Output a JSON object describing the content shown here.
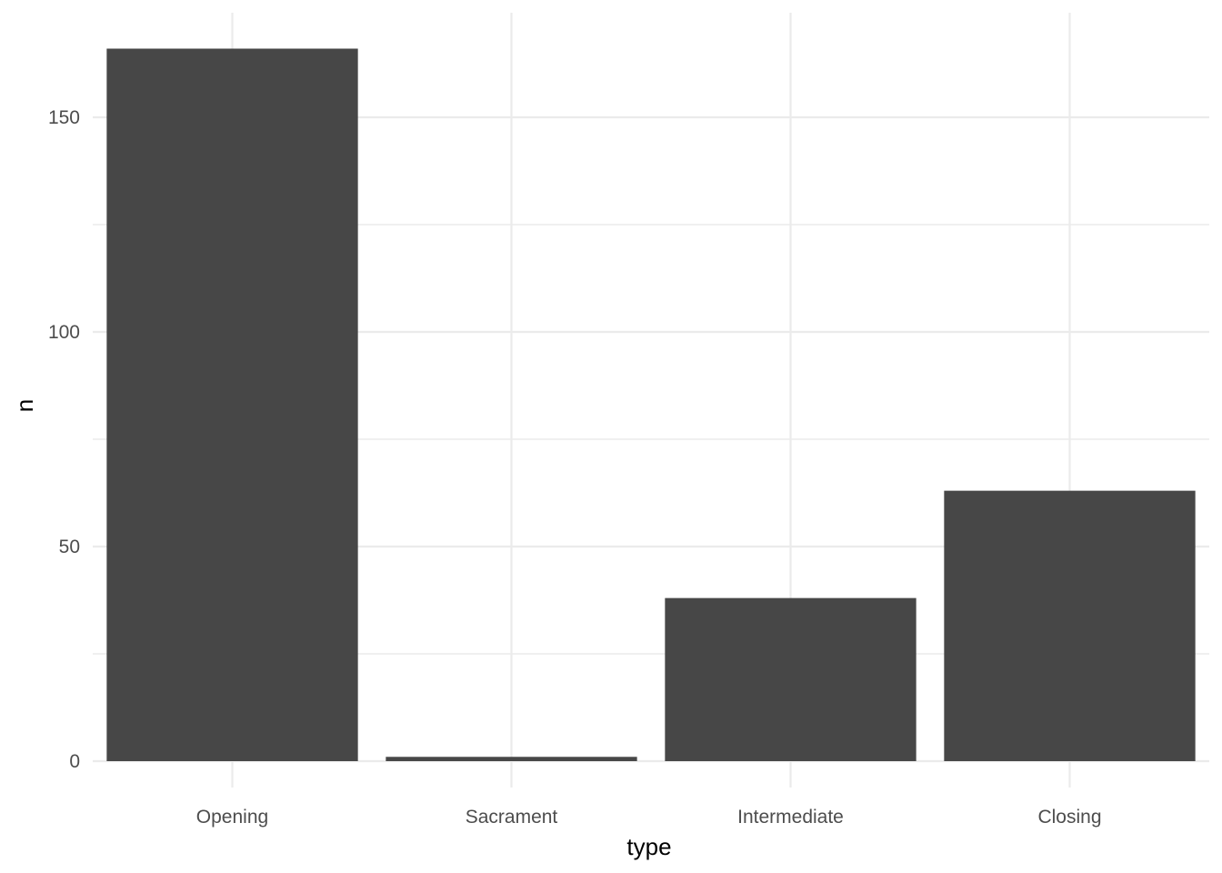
{
  "chart_data": {
    "type": "bar",
    "title": "",
    "xlabel": "type",
    "ylabel": "n",
    "categories": [
      "Opening",
      "Sacrament",
      "Intermediate",
      "Closing"
    ],
    "values": [
      166,
      1,
      38,
      63
    ],
    "ylim": [
      0,
      166
    ],
    "yticks": [
      0,
      50,
      100,
      150
    ],
    "y_minor_ticks": [
      25,
      75,
      125
    ],
    "grid": true,
    "legend": "none",
    "bar_color": "#474747",
    "grid_color": "#ebebeb",
    "background": "#ffffff"
  }
}
